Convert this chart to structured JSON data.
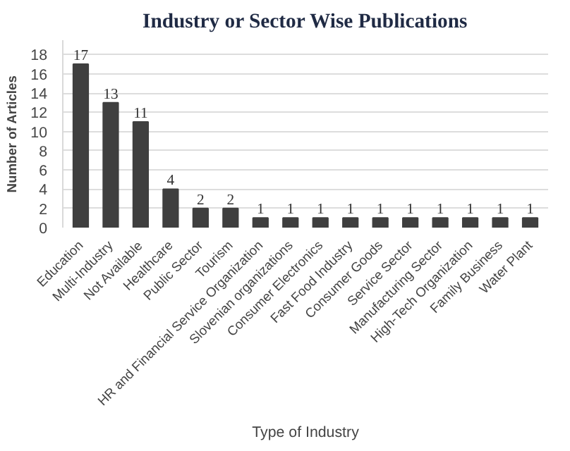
{
  "chart_data": {
    "type": "bar",
    "title": "Industry or Sector Wise Publications",
    "xlabel": "Type of Industry",
    "ylabel": "Number of Articles",
    "categories": [
      "Education",
      "Multi-Industry",
      "Not Available",
      "Healthcare",
      "Public Sector",
      "Tourism",
      "HR and Financial Service Organization",
      "Slovenian organizations",
      "Consumer Electronics",
      "Fast Food Industry",
      "Consumer Goods",
      "Service Sector",
      "Manufacturing Sector",
      "High-Tech Organization",
      "Family Business",
      "Water Plant"
    ],
    "values": [
      17,
      13,
      11,
      4,
      2,
      2,
      1,
      1,
      1,
      1,
      1,
      1,
      1,
      1,
      1,
      1
    ],
    "color": "#3f3f3f",
    "ylim": [
      0,
      19.5
    ],
    "yticks": [
      0,
      2,
      4,
      6,
      8,
      10,
      12,
      14,
      16,
      18
    ],
    "grid": "y",
    "data_labels": true
  }
}
